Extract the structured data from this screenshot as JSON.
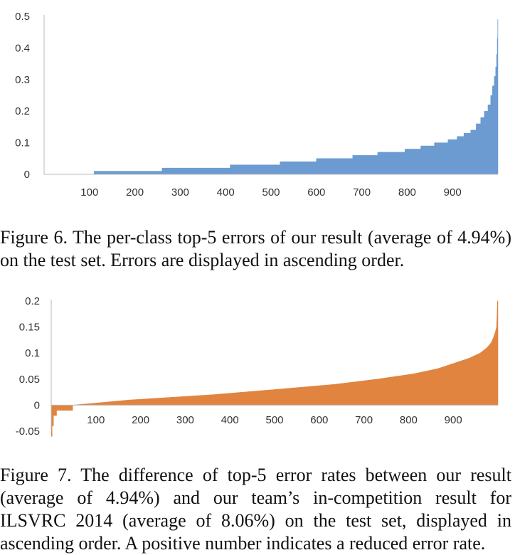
{
  "chart_data": [
    {
      "type": "area",
      "color": "#6b9bd1",
      "xlim": [
        0,
        1000
      ],
      "ylim": [
        0,
        0.5
      ],
      "yticks": [
        0,
        0.1,
        0.2,
        0.3,
        0.4,
        0.5
      ],
      "ytick_labels": [
        "0",
        "0.1",
        "0.2",
        "0.3",
        "0.4",
        "0.5"
      ],
      "xticks": [
        100,
        200,
        300,
        400,
        500,
        600,
        700,
        800,
        900
      ],
      "xtick_labels": [
        "100",
        "200",
        "300",
        "400",
        "500",
        "600",
        "700",
        "800",
        "900"
      ],
      "grid": false,
      "x": [
        0,
        110,
        110,
        260,
        260,
        410,
        410,
        520,
        520,
        600,
        600,
        680,
        680,
        735,
        735,
        795,
        795,
        830,
        830,
        860,
        860,
        890,
        890,
        910,
        910,
        925,
        925,
        940,
        940,
        952,
        952,
        962,
        962,
        970,
        970,
        978,
        978,
        984,
        984,
        988,
        988,
        992,
        992,
        995,
        995,
        997,
        997,
        998.5,
        998.5,
        999.5,
        999.5,
        1000
      ],
      "y": [
        0,
        0,
        0.01,
        0.01,
        0.02,
        0.02,
        0.03,
        0.03,
        0.04,
        0.04,
        0.05,
        0.05,
        0.06,
        0.06,
        0.07,
        0.07,
        0.08,
        0.08,
        0.09,
        0.09,
        0.1,
        0.1,
        0.11,
        0.11,
        0.12,
        0.12,
        0.13,
        0.13,
        0.14,
        0.14,
        0.16,
        0.16,
        0.18,
        0.18,
        0.2,
        0.2,
        0.22,
        0.22,
        0.25,
        0.25,
        0.28,
        0.28,
        0.31,
        0.31,
        0.34,
        0.34,
        0.38,
        0.38,
        0.43,
        0.43,
        0.49,
        0.49
      ]
    },
    {
      "type": "area",
      "color": "#e0843f",
      "xlim": [
        0,
        1000
      ],
      "ylim": [
        -0.05,
        0.2
      ],
      "yticks": [
        -0.05,
        0,
        0.05,
        0.1,
        0.15,
        0.2
      ],
      "ytick_labels": [
        "-0.05",
        "0",
        "0.05",
        "0.1",
        "0.15",
        "0.2"
      ],
      "xticks": [
        100,
        200,
        300,
        400,
        500,
        600,
        700,
        800,
        900
      ],
      "xtick_labels": [
        "100",
        "200",
        "300",
        "400",
        "500",
        "600",
        "700",
        "800",
        "900"
      ],
      "grid": false,
      "x": [
        0,
        2,
        2,
        5,
        5,
        12,
        12,
        48,
        48,
        175,
        175,
        360,
        360,
        500,
        500,
        635,
        635,
        730,
        730,
        810,
        810,
        865,
        865,
        900,
        900,
        935,
        935,
        960,
        960,
        975,
        975,
        985,
        985,
        990,
        990,
        994,
        994,
        997,
        997,
        999,
        999,
        1000
      ],
      "y": [
        -0.06,
        -0.06,
        -0.04,
        -0.04,
        -0.02,
        -0.02,
        -0.01,
        -0.01,
        0,
        0.01,
        0.01,
        0.02,
        0.02,
        0.03,
        0.03,
        0.04,
        0.04,
        0.05,
        0.05,
        0.06,
        0.06,
        0.07,
        0.07,
        0.08,
        0.08,
        0.09,
        0.09,
        0.1,
        0.1,
        0.11,
        0.11,
        0.12,
        0.12,
        0.13,
        0.13,
        0.14,
        0.14,
        0.15,
        0.15,
        0.2,
        0.2,
        0.2
      ]
    }
  ],
  "captions": {
    "figure6": "Figure 6. The per-class top-5 errors of our result (average of 4.94%) on the test set. Errors are displayed in ascending order.",
    "figure7": "Figure 7. The difference of top-5 error rates between our result (average of 4.94%) and our team’s in-competition result for ILSVRC 2014 (average of 8.06%) on the test set, displayed in ascending order. A positive number indicates a reduced error rate."
  }
}
